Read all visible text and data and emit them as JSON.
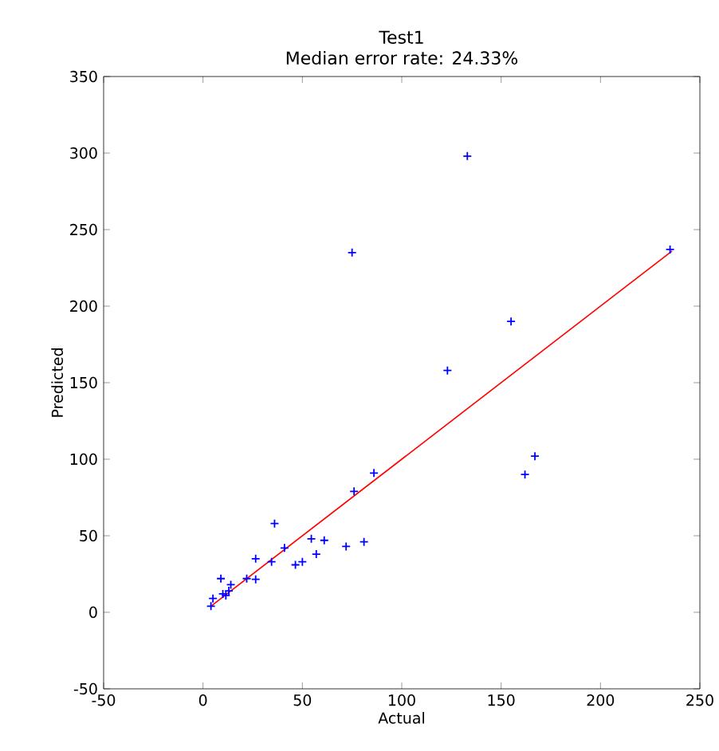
{
  "chart_data": {
    "type": "scatter",
    "title": "Test1",
    "subtitle": "Median error rate: 24.33%",
    "xlabel": "Actual",
    "ylabel": "Predicted",
    "xlim": [
      -50,
      250
    ],
    "xticks": [
      -50,
      0,
      50,
      100,
      150,
      200,
      250
    ],
    "ylim": [
      -50,
      350
    ],
    "yticks": [
      -50,
      0,
      50,
      100,
      150,
      200,
      250,
      300,
      350
    ],
    "grid": false,
    "legend": false,
    "series": [
      {
        "color": "#0000ff",
        "marker": "cross",
        "x": [
          4,
          5,
          9,
          10,
          11.5,
          13,
          14,
          22,
          26.5,
          26.5,
          36,
          34.5,
          41,
          46.5,
          50,
          57,
          54.5,
          61,
          72,
          81,
          76,
          86,
          123,
          155,
          162,
          167,
          75,
          133,
          235
        ],
        "values": [
          4,
          9,
          22,
          12,
          11,
          14,
          18,
          22,
          21.5,
          35,
          58,
          33,
          42,
          31,
          33,
          38,
          48,
          47,
          43,
          46,
          79,
          91,
          158,
          190,
          90,
          102,
          235,
          298,
          237
        ]
      },
      {
        "type": "line",
        "color": "#ff0000",
        "marker": "none",
        "line_style": "solid",
        "x": [
          4,
          236
        ],
        "values": [
          4,
          236
        ]
      }
    ]
  }
}
